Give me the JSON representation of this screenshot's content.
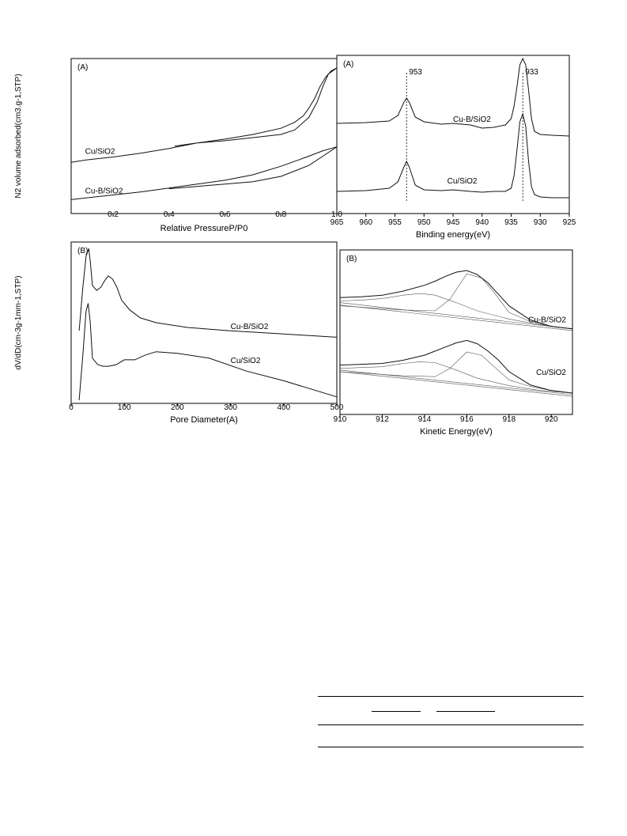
{
  "colors": {
    "axis": "#000000",
    "curve": "#111111",
    "fit": "#555555",
    "guide": "#000000"
  },
  "chart_data": [
    {
      "id": "bet",
      "type": "line",
      "panel_label": "(A)",
      "xlabel": "Relative PressureP/P0",
      "ylabel": "N2 volume adsorbed(cm3.g-1,STP)",
      "xlim": [
        0.05,
        1.0
      ],
      "ylim": [
        0,
        100
      ],
      "xticks": [
        0.2,
        0.4,
        0.6,
        0.8,
        1.0
      ],
      "xtick_labels": [
        "0.2",
        "0.4",
        "0.6",
        "0.8",
        "1.0"
      ],
      "series": [
        {
          "name": "Cu/SiO2",
          "label_at": [
            0.1,
            38.5
          ],
          "x": [
            0.05,
            0.1,
            0.2,
            0.3,
            0.4,
            0.5,
            0.6,
            0.7,
            0.8,
            0.85,
            0.88,
            0.9,
            0.92,
            0.94,
            0.96,
            0.98,
            1.0,
            0.97,
            0.95,
            0.93,
            0.9,
            0.85,
            0.8,
            0.7,
            0.6,
            0.5,
            0.42
          ],
          "y": [
            33,
            34.5,
            36.5,
            39,
            42,
            45.5,
            48,
            51,
            55,
            59,
            63,
            68,
            74,
            82,
            88,
            92,
            94,
            90,
            82,
            72,
            62,
            54,
            51,
            49,
            47,
            45.5,
            43.5
          ]
        },
        {
          "name": "Cu-B/SiO2",
          "label_at": [
            0.1,
            13
          ],
          "x": [
            0.05,
            0.1,
            0.2,
            0.3,
            0.4,
            0.5,
            0.6,
            0.7,
            0.8,
            0.9,
            0.95,
            1.0,
            0.95,
            0.9,
            0.8,
            0.7,
            0.6,
            0.5,
            0.4
          ],
          "y": [
            9,
            10,
            12,
            14,
            16.5,
            19,
            21.5,
            25,
            30.5,
            37,
            40.5,
            43,
            37,
            31,
            24,
            20.5,
            19,
            17.5,
            16
          ]
        }
      ]
    },
    {
      "id": "pore",
      "type": "line",
      "panel_label": "(B)",
      "xlabel": "Pore Diameter(A)",
      "ylabel": "dV/dD(cm-3g-1mm-1,STP)",
      "xlim": [
        0,
        500
      ],
      "ylim": [
        0,
        100
      ],
      "xticks": [
        0,
        100,
        200,
        300,
        400,
        500
      ],
      "xtick_labels": [
        "0",
        "100",
        "200",
        "300",
        "400",
        "500"
      ],
      "series": [
        {
          "name": "Cu-B/SiO2",
          "label_at": [
            300,
            46
          ],
          "x": [
            15,
            22,
            28,
            33,
            36,
            40,
            48,
            56,
            63,
            70,
            78,
            86,
            95,
            110,
            130,
            160,
            220,
            300,
            400,
            500
          ],
          "y": [
            45,
            72,
            91,
            96,
            88,
            73,
            70,
            72,
            76,
            79,
            77,
            72,
            64,
            58,
            53,
            50,
            47,
            45,
            43,
            41
          ]
        },
        {
          "name": "Cu/SiO2",
          "label_at": [
            300,
            25
          ],
          "x": [
            15,
            22,
            28,
            32,
            36,
            40,
            50,
            60,
            70,
            85,
            100,
            110,
            120,
            140,
            160,
            200,
            260,
            330,
            400,
            500
          ],
          "y": [
            2,
            30,
            57,
            62,
            50,
            28,
            24,
            23,
            23,
            24,
            27,
            27,
            27,
            30,
            32,
            31,
            28,
            20,
            14,
            4
          ]
        }
      ]
    },
    {
      "id": "xps",
      "type": "line",
      "panel_label": "(A)",
      "xlabel": "Binding energy(eV)",
      "ylabel": "",
      "xlim": [
        965,
        925
      ],
      "ylim": [
        0,
        100
      ],
      "xticks": [
        965,
        960,
        955,
        950,
        945,
        940,
        935,
        930,
        925
      ],
      "xtick_labels": [
        "965",
        "960",
        "955",
        "950",
        "945",
        "940",
        "935",
        "930",
        "925"
      ],
      "annotations": [
        {
          "x": 953,
          "text": "953"
        },
        {
          "x": 933,
          "text": "933"
        }
      ],
      "series": [
        {
          "name": "Cu-B/SiO2",
          "label_at": [
            945,
            58
          ],
          "x": [
            965,
            960,
            956,
            954.5,
            953.5,
            953,
            952.5,
            951.5,
            950,
            947,
            945,
            942,
            940,
            938,
            936,
            935,
            934.5,
            934,
            933.5,
            933,
            932.5,
            932,
            931.5,
            931,
            930,
            928,
            925
          ],
          "y": [
            57,
            57.5,
            58.5,
            62,
            70,
            73,
            70,
            61,
            58,
            56.5,
            57,
            56,
            54,
            54.5,
            56,
            60,
            68,
            80,
            94,
            98,
            94,
            78,
            60,
            52,
            50,
            49.5,
            49
          ]
        },
        {
          "name": "Cu/SiO2",
          "label_at": [
            946,
            19
          ],
          "x": [
            965,
            960,
            956,
            954.5,
            953.5,
            953,
            952.5,
            951.5,
            950,
            947,
            945,
            942,
            940,
            938,
            936,
            935,
            934.5,
            934,
            933.5,
            933,
            932.5,
            932,
            931.5,
            931,
            930,
            928,
            925
          ],
          "y": [
            14,
            14.5,
            16,
            20,
            29,
            33,
            29,
            18,
            15,
            14.5,
            15,
            14,
            13.5,
            14,
            14,
            16,
            24,
            40,
            58,
            63,
            55,
            33,
            17,
            12,
            10.5,
            10,
            10
          ]
        }
      ]
    },
    {
      "id": "auger",
      "type": "line",
      "panel_label": "(B)",
      "xlabel": "Kinetic Energy(eV)",
      "ylabel": "",
      "xlim": [
        910,
        921
      ],
      "ylim": [
        0,
        100
      ],
      "xticks": [
        910,
        912,
        914,
        916,
        918,
        920
      ],
      "xtick_labels": [
        "910",
        "912",
        "914",
        "916",
        "918",
        "920"
      ],
      "series": [
        {
          "name": "Cu-B/SiO2",
          "label_at": [
            920.7,
            56
          ],
          "x": [
            910,
            911,
            912,
            913,
            914,
            914.5,
            915,
            915.5,
            916,
            916.5,
            917,
            917.5,
            918,
            919,
            920,
            921
          ],
          "y": [
            71,
            71.5,
            72.5,
            75,
            78.5,
            81,
            84,
            86.5,
            87.5,
            85,
            80,
            73,
            66,
            57.5,
            53.5,
            52
          ]
        },
        {
          "name": "Cu/SiO2",
          "label_at": [
            920.7,
            24
          ],
          "x": [
            910,
            911,
            912,
            913,
            914,
            914.5,
            915,
            915.5,
            916,
            916.5,
            917,
            917.5,
            918,
            919,
            920,
            921
          ],
          "y": [
            30,
            30.5,
            31,
            33,
            36,
            38.5,
            41,
            43.5,
            45,
            43,
            38.5,
            33,
            26,
            18,
            14.5,
            13
          ]
        }
      ],
      "fits": [
        {
          "x": [
            910,
            911,
            912,
            913,
            913.8,
            914.5,
            915.5,
            916.5,
            918,
            919.5,
            921
          ],
          "y": [
            69,
            69.5,
            70.5,
            72.5,
            73.5,
            72.5,
            68,
            63,
            58,
            54.5,
            52
          ]
        },
        {
          "x": [
            910,
            913,
            914.5,
            915.2,
            916,
            916.7,
            917.3,
            918,
            919,
            920,
            921
          ],
          "y": [
            66,
            63.5,
            63,
            70,
            85.5,
            83,
            74,
            62,
            56.5,
            53.5,
            52
          ]
        },
        {
          "x": [
            910,
            921
          ],
          "y": [
            68,
            52
          ]
        },
        {
          "x": [
            910,
            921
          ],
          "y": [
            66.5,
            51
          ]
        },
        {
          "x": [
            910,
            911,
            912,
            913,
            913.8,
            914.5,
            915.5,
            916.5,
            918,
            919.5,
            921
          ],
          "y": [
            28,
            28.5,
            29,
            31,
            32,
            31.5,
            27,
            22,
            17.5,
            14.5,
            13
          ]
        },
        {
          "x": [
            910,
            913,
            914.5,
            915.2,
            916,
            916.7,
            917.3,
            918,
            919,
            920,
            921
          ],
          "y": [
            26,
            23.5,
            23,
            28,
            38,
            36,
            29,
            21,
            17,
            14.5,
            13
          ]
        },
        {
          "x": [
            910,
            921
          ],
          "y": [
            27,
            12
          ]
        },
        {
          "x": [
            910,
            921
          ],
          "y": [
            26,
            11
          ]
        }
      ]
    }
  ],
  "table": {}
}
